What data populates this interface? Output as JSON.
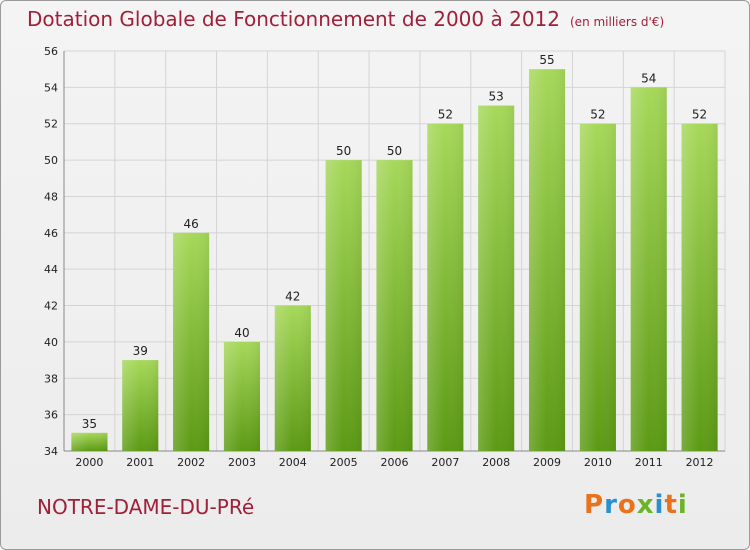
{
  "header": {
    "title": "Dotation Globale de Fonctionnement de 2000 à 2012",
    "subtitle": "(en milliers d'€)"
  },
  "footer": {
    "commune": "NOTRE-DAME-DU-PRé",
    "logo": "Proxiti"
  },
  "colors": {
    "title": "#a0203a",
    "bar_light": "#a6d85a",
    "bar_dark": "#5c9a14",
    "grid": "#d4d4d4",
    "logo_letters": [
      "#e8731c",
      "#2a8fd0",
      "#e8731c",
      "#6ab42a",
      "#2a8fd0",
      "#e8731c",
      "#6ab42a"
    ]
  },
  "chart_data": {
    "type": "bar",
    "title": "Dotation Globale de Fonctionnement de 2000 à 2012",
    "subtitle": "(en milliers d'€)",
    "xlabel": "",
    "ylabel": "",
    "categories": [
      "2000",
      "2001",
      "2002",
      "2003",
      "2004",
      "2005",
      "2006",
      "2007",
      "2008",
      "2009",
      "2010",
      "2011",
      "2012"
    ],
    "values": [
      35,
      39,
      46,
      40,
      42,
      50,
      50,
      52,
      53,
      55,
      52,
      54,
      52
    ],
    "ylim": [
      34,
      56
    ],
    "yticks": [
      34,
      36,
      38,
      40,
      42,
      44,
      46,
      48,
      50,
      52,
      54,
      56
    ],
    "grid": true,
    "legend": "none"
  }
}
